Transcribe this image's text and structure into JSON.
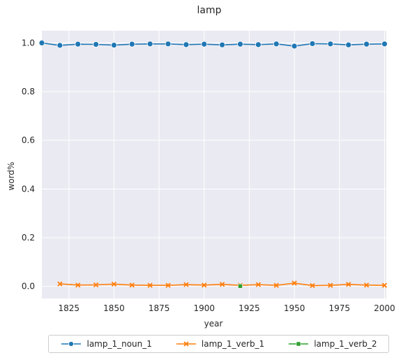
{
  "chart_data": {
    "type": "line",
    "title": "lamp",
    "xlabel": "year",
    "ylabel": "word%",
    "xlim": [
      1810,
      2001
    ],
    "ylim": [
      -0.05,
      1.05
    ],
    "xticks": [
      1825,
      1850,
      1875,
      1900,
      1925,
      1950,
      1975,
      2000
    ],
    "yticks": [
      0.0,
      0.2,
      0.4,
      0.6,
      0.8,
      1.0
    ],
    "grid": true,
    "legend_position": "bottom",
    "background": "#eaeaf2",
    "series": [
      {
        "name": "lamp_1_noun_1",
        "color": "#1f77b4",
        "marker": "circle",
        "x": [
          1810,
          1820,
          1830,
          1840,
          1850,
          1860,
          1870,
          1880,
          1890,
          1900,
          1910,
          1920,
          1930,
          1940,
          1950,
          1960,
          1970,
          1980,
          1990,
          2000
        ],
        "y": [
          1.0,
          0.99,
          0.995,
          0.994,
          0.991,
          0.995,
          0.996,
          0.996,
          0.993,
          0.995,
          0.992,
          0.995,
          0.993,
          0.996,
          0.987,
          0.997,
          0.996,
          0.992,
          0.995,
          0.996
        ]
      },
      {
        "name": "lamp_1_verb_1",
        "color": "#ff7f0e",
        "marker": "x",
        "x": [
          1820,
          1830,
          1840,
          1850,
          1860,
          1870,
          1880,
          1890,
          1900,
          1910,
          1920,
          1930,
          1940,
          1950,
          1960,
          1970,
          1980,
          1990,
          2000
        ],
        "y": [
          0.01,
          0.005,
          0.006,
          0.009,
          0.005,
          0.004,
          0.004,
          0.007,
          0.005,
          0.008,
          0.004,
          0.007,
          0.004,
          0.013,
          0.003,
          0.004,
          0.008,
          0.005,
          0.004
        ]
      },
      {
        "name": "lamp_1_verb_2",
        "color": "#2ca02c",
        "marker": "square",
        "x": [
          1920
        ],
        "y": [
          0.001
        ]
      }
    ]
  }
}
